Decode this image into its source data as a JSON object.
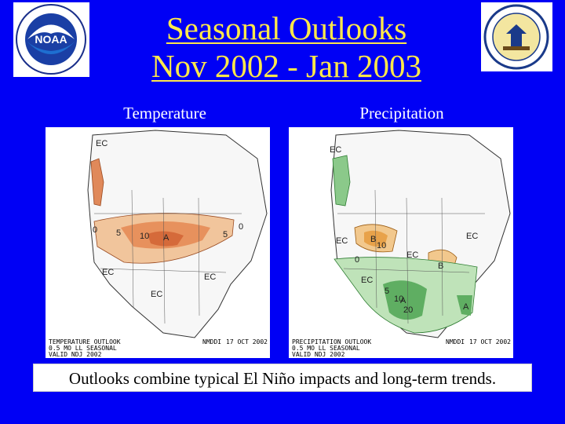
{
  "slide": {
    "title_line1": "Seasonal Outlooks",
    "title_line2": "Nov 2002 - Jan 2003",
    "caption": "Outlooks combine typical El Niño impacts and long-term trends.",
    "background_color": "#0000f5",
    "title_color": "#ffe84a"
  },
  "logos": {
    "left_icon": "noaa-logo-icon",
    "left_text": "NOAA",
    "right_icon": "department-of-commerce-seal-icon"
  },
  "temperature": {
    "label": "Temperature",
    "footer_line1": "TEMPERATURE OUTLOOK",
    "footer_line2": "0.5 MO LL SEASONAL",
    "footer_line3": "VALID NDJ 2002",
    "footer_date": "17 OCT 2002",
    "footer_org": "NMDDI",
    "class_labels": [
      "EC",
      "A",
      "EC",
      "EC",
      "EC"
    ],
    "contour_labels": [
      "0",
      "5",
      "10",
      "5",
      "0"
    ]
  },
  "precipitation": {
    "label": "Precipitation",
    "footer_line1": "PRECIPITATION OUTLOOK",
    "footer_line2": "0.5 MO LL SEASONAL",
    "footer_line3": "VALID NDJ 2002",
    "footer_date": "17 OCT 2002",
    "footer_org": "NMDDI",
    "class_labels": [
      "EC",
      "EC",
      "B",
      "EC",
      "B",
      "EC",
      "A",
      "A",
      "EC"
    ],
    "contour_labels": [
      "10",
      "20",
      "5",
      "10",
      "0"
    ]
  }
}
